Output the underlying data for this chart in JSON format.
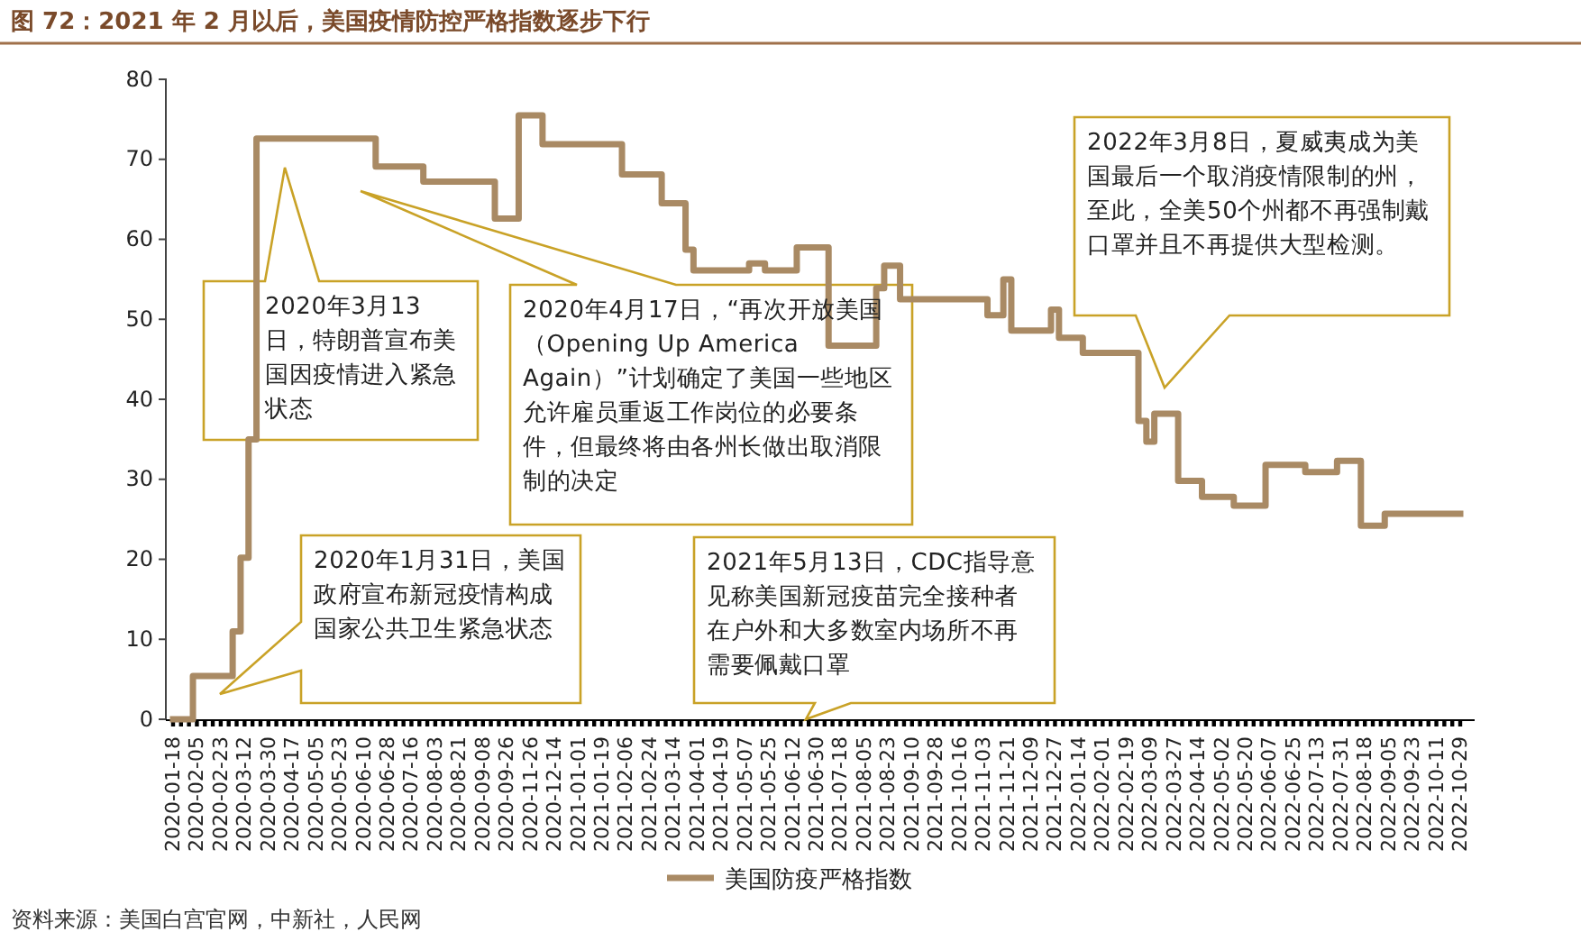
{
  "chart_data": {
    "type": "step",
    "title": "图 72：2021 年 2 月以后，美国疫情防控严格指数逐步下行",
    "categories": [
      "2020-01-18",
      null,
      null,
      "2020-02-05",
      null,
      null,
      "2020-02-23",
      null,
      null,
      "2020-03-12",
      null,
      null,
      "2020-03-30",
      null,
      null,
      "2020-04-17",
      null,
      null,
      "2020-05-05",
      null,
      null,
      "2020-05-23",
      null,
      null,
      "2020-06-10",
      null,
      null,
      "2020-06-28",
      null,
      null,
      "2020-07-16",
      null,
      null,
      "2020-08-03",
      null,
      null,
      "2020-08-21",
      null,
      null,
      "2020-09-08",
      null,
      null,
      "2020-09-26",
      null,
      null,
      "2020-11-26",
      null,
      null,
      "2020-12-14",
      null,
      null,
      "2021-01-01",
      null,
      null,
      "2021-01-19",
      null,
      null,
      "2021-02-06",
      null,
      null,
      "2021-02-24",
      null,
      null,
      "2021-03-14",
      null,
      null,
      "2021-04-01",
      null,
      null,
      "2021-04-19",
      null,
      null,
      "2021-05-07",
      null,
      null,
      "2021-05-25",
      null,
      null,
      "2021-06-12",
      null,
      null,
      "2021-06-30",
      null,
      null,
      "2021-07-18",
      null,
      null,
      "2021-08-05",
      null,
      null,
      "2021-08-23",
      null,
      null,
      "2021-09-10",
      null,
      null,
      "2021-09-28",
      null,
      null,
      "2021-10-16",
      null,
      null,
      "2021-11-03",
      null,
      null,
      "2021-11-21",
      null,
      null,
      "2021-12-09",
      null,
      null,
      "2021-12-27",
      null,
      null,
      "2022-01-14",
      null,
      null,
      "2022-02-01",
      null,
      null,
      "2022-02-19",
      null,
      null,
      "2022-03-09",
      null,
      null,
      "2022-03-27",
      null,
      null,
      "2022-04-14",
      null,
      null,
      "2022-05-02",
      null,
      null,
      "2022-05-20",
      null,
      null,
      "2022-06-07",
      null,
      null,
      "2022-06-25",
      null,
      null,
      "2022-07-13",
      null,
      null,
      "2022-07-31",
      null,
      null,
      "2022-08-18",
      null,
      null,
      "2022-09-05",
      null,
      null,
      "2022-09-23",
      null,
      null,
      "2022-10-11",
      null,
      null,
      "2022-10-29"
    ],
    "series": [
      {
        "name": "美国防疫严格指数",
        "color": "#a98a64",
        "values": [
          0,
          0,
          0,
          5.4,
          5.4,
          5.4,
          5.4,
          5.4,
          11,
          20.2,
          35,
          72.6,
          72.6,
          72.6,
          72.6,
          72.6,
          72.6,
          72.6,
          72.6,
          72.6,
          72.6,
          72.6,
          72.6,
          72.6,
          72.6,
          72.6,
          69.1,
          69.1,
          69.1,
          69.1,
          69.1,
          69.1,
          67.2,
          67.2,
          67.2,
          67.2,
          67.2,
          67.2,
          67.2,
          67.2,
          67.2,
          62.6,
          62.6,
          62.6,
          75.5,
          75.5,
          75.5,
          71.9,
          71.9,
          71.9,
          71.9,
          71.9,
          71.9,
          71.9,
          71.9,
          71.9,
          71.9,
          68.1,
          68.1,
          68.1,
          68.1,
          68.1,
          64.5,
          64.5,
          64.5,
          58.7,
          56.1,
          56.1,
          56.1,
          56.1,
          56.1,
          56.1,
          56.1,
          57.0,
          57.0,
          56.1,
          56.1,
          56.1,
          56.1,
          59.0,
          59.0,
          59.0,
          59.0,
          46.7,
          46.7,
          46.7,
          46.7,
          46.7,
          46.7,
          53.9,
          56.7,
          56.7,
          52.5,
          52.5,
          52.5,
          52.5,
          52.5,
          52.5,
          52.5,
          52.5,
          52.5,
          52.5,
          52.5,
          50.5,
          50.5,
          55.0,
          48.6,
          48.6,
          48.6,
          48.6,
          48.6,
          51.2,
          47.7,
          47.7,
          47.7,
          45.8,
          45.8,
          45.8,
          45.8,
          45.8,
          45.8,
          45.8,
          37.3,
          34.7,
          38.2,
          38.2,
          38.2,
          29.8,
          29.8,
          29.8,
          27.8,
          27.8,
          27.8,
          27.8,
          26.7,
          26.7,
          26.7,
          26.7,
          31.8,
          31.8,
          31.8,
          31.8,
          31.8,
          30.9,
          30.9,
          30.9,
          30.9,
          32.3,
          32.3,
          32.3,
          24.2,
          24.2,
          24.2,
          25.7,
          25.7,
          25.7,
          25.7,
          25.7,
          25.7,
          25.7,
          25.7,
          25.7,
          25.7
        ]
      }
    ],
    "ylim": [
      0,
      80
    ],
    "yticks": [
      0,
      10,
      20,
      30,
      40,
      50,
      60,
      70,
      80
    ],
    "legend": "bottom",
    "annotations": [
      "2020年3月13日，特朗普宣布美国因疫情进入紧急状态",
      "2020年4月17日，“再次开放美国（Opening Up America Again）”计划确定了美国一些地区允许雇员重返工作岗位的必要条件，但最终将由各州长做出取消限制的决定",
      "2020年1月31日，美国政府宣布新冠疫情构成国家公共卫生紧急状态",
      "2021年5月13日，CDC指导意见称美国新冠疫苗完全接种者在户外和大多数室内场所不再需要佩戴口罩",
      "2022年3月8日，夏威夷成为美国最后一个取消疫情限制的州，至此，全美50个州都不再强制戴口罩并且不再提供大型检测。",
      "资料来源：美国白宫官网，中新社，人民网"
    ]
  }
}
